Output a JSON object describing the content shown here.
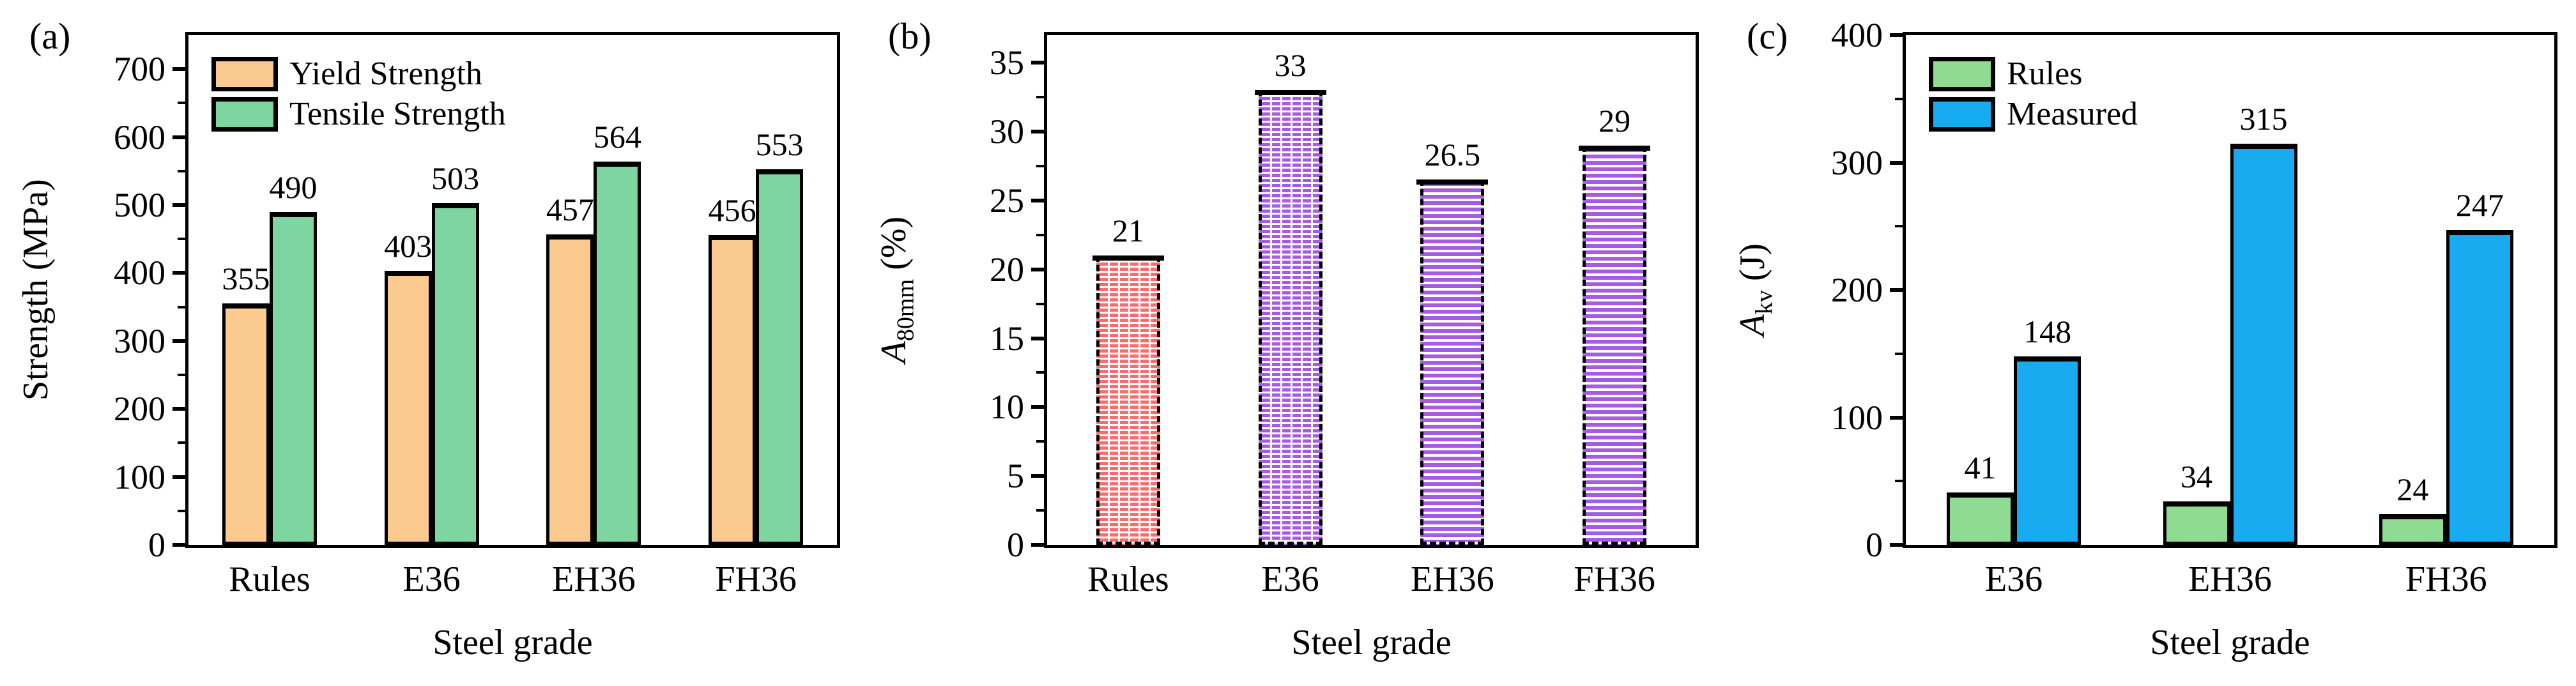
{
  "figure": {
    "background": "#ffffff",
    "axis_color": "#000000"
  },
  "chart_data": [
    {
      "type": "bar",
      "panel_label": "(a)",
      "xlabel": "Steel grade",
      "ylabel": {
        "text": "Strength (MPa)"
      },
      "categories": [
        "Rules",
        "E36",
        "EH36",
        "FH36"
      ],
      "series": [
        {
          "name": "Yield Strength",
          "color": "#FBCA8F",
          "values": [
            355,
            403,
            457,
            456
          ]
        },
        {
          "name": "Tensile Strength",
          "color": "#7DD6A0",
          "values": [
            490,
            503,
            564,
            553
          ]
        }
      ],
      "ylim": [
        0,
        750
      ],
      "yticks": [
        0,
        100,
        200,
        300,
        400,
        500,
        600,
        700
      ],
      "minor_step": 50,
      "grid": "off",
      "legend": {
        "position": "top-left",
        "entries": [
          "Yield Strength",
          "Tensile Strength"
        ]
      }
    },
    {
      "type": "bar",
      "panel_label": "(b)",
      "xlabel": "Steel grade",
      "ylabel": {
        "italic": "A",
        "sub": "80mm",
        "text": " (%)"
      },
      "categories": [
        "Rules",
        "E36",
        "EH36",
        "FH36"
      ],
      "series": [
        {
          "name": "A80mm",
          "values": [
            21,
            33,
            26.5,
            29
          ],
          "styles": [
            {
              "color": "#FA6B6B",
              "hatch": "brick"
            },
            {
              "color": "#A55BE3",
              "hatch": "brick"
            },
            {
              "color": "#A55BE3",
              "hatch": "hlines"
            },
            {
              "color": "#A55BE3",
              "hatch": "hlines"
            }
          ]
        }
      ],
      "ylim": [
        0,
        37
      ],
      "yticks": [
        0,
        5,
        10,
        15,
        20,
        25,
        30,
        35
      ],
      "minor_step": 2.5,
      "grid": "off"
    },
    {
      "type": "bar",
      "panel_label": "(c)",
      "xlabel": "Steel grade",
      "ylabel": {
        "italic": "A",
        "sub": "kv",
        "text": " (J)"
      },
      "categories": [
        "E36",
        "EH36",
        "FH36"
      ],
      "series": [
        {
          "name": "Rules",
          "color": "#90DB92",
          "values": [
            41,
            34,
            24
          ]
        },
        {
          "name": "Measured",
          "color": "#18ABF0",
          "values": [
            148,
            315,
            247
          ]
        }
      ],
      "ylim": [
        0,
        400
      ],
      "yticks": [
        0,
        100,
        200,
        300,
        400
      ],
      "minor_step": 50,
      "grid": "off",
      "legend": {
        "position": "top-left",
        "entries": [
          "Rules",
          "Measured"
        ]
      }
    }
  ]
}
